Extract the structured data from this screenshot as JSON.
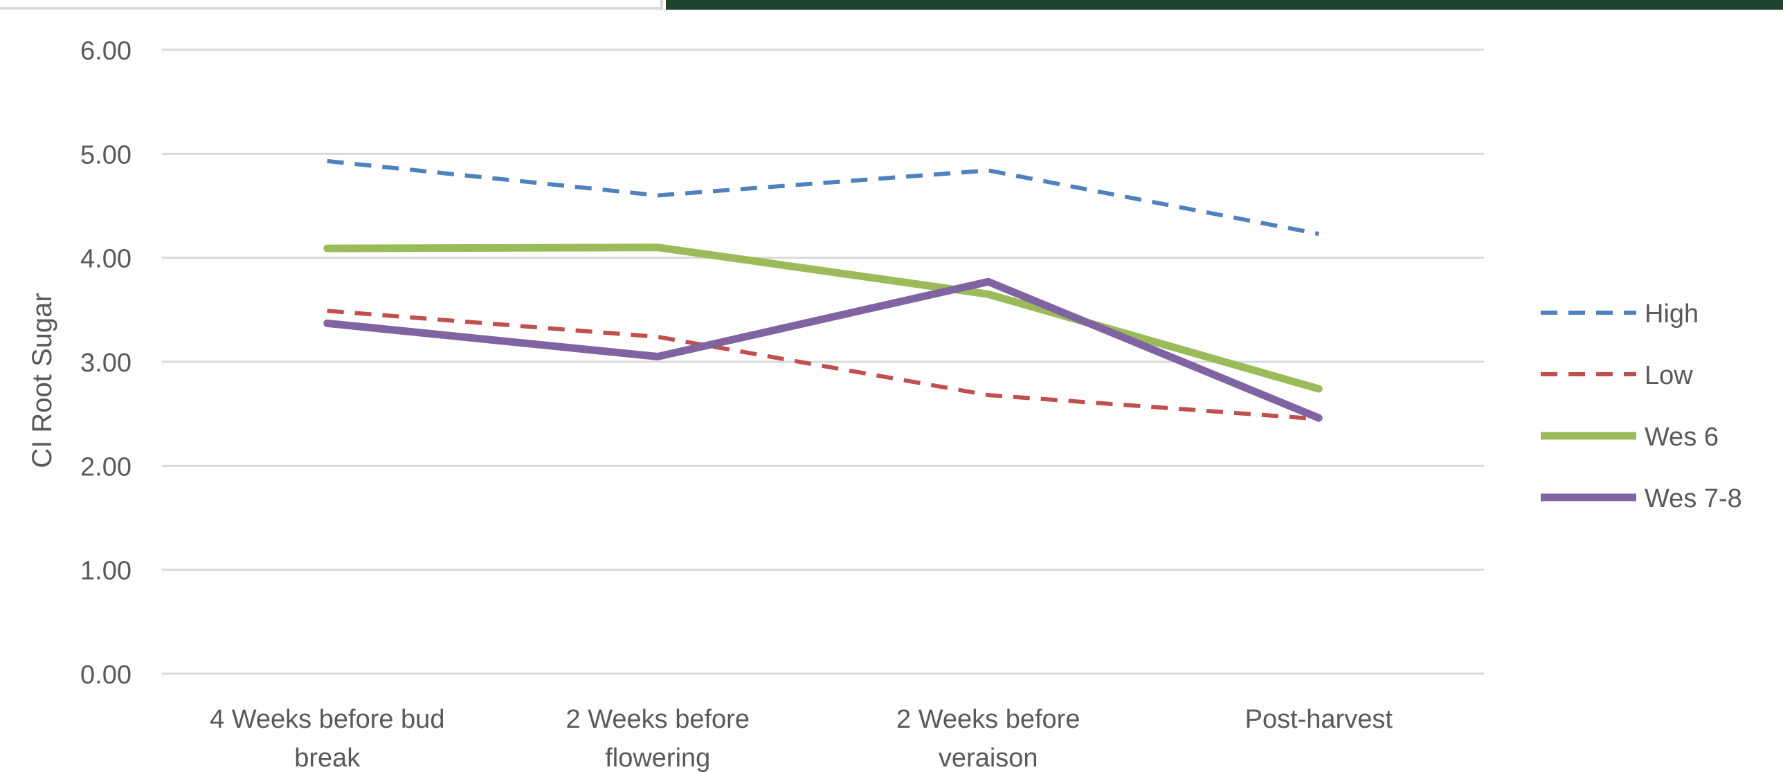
{
  "chart_data": {
    "type": "line",
    "title": "",
    "xlabel": "",
    "ylabel": "CI Root Sugar",
    "ylim": [
      0,
      6
    ],
    "yticks": [
      "0.00",
      "1.00",
      "2.00",
      "3.00",
      "4.00",
      "5.00",
      "6.00"
    ],
    "grid": true,
    "legend_position": "right",
    "categories": [
      [
        "4 Weeks before bud",
        "break"
      ],
      [
        "2 Weeks before",
        "flowering"
      ],
      [
        "2 Weeks before",
        "veraison"
      ],
      [
        "Post-harvest"
      ]
    ],
    "series": [
      {
        "name": "High",
        "values": [
          4.93,
          4.6,
          4.84,
          4.23
        ],
        "color": "#4f81bd",
        "style": "dashed"
      },
      {
        "name": "Low",
        "values": [
          3.49,
          3.24,
          2.68,
          2.45
        ],
        "color": "#c0504d",
        "style": "dashed"
      },
      {
        "name": "Wes 6",
        "values": [
          4.09,
          4.1,
          3.65,
          2.74
        ],
        "color": "#9bbb59",
        "style": "solid"
      },
      {
        "name": "Wes 7-8",
        "values": [
          3.37,
          3.05,
          3.77,
          2.46
        ],
        "color": "#8064a2",
        "style": "solid"
      }
    ]
  }
}
